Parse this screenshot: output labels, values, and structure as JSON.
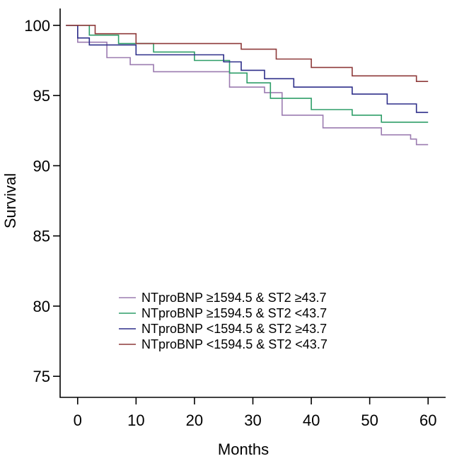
{
  "chart_data": {
    "type": "line",
    "subtype": "kaplan-meier-step",
    "xlabel": "Months",
    "ylabel": "Survival",
    "xlim": [
      -3,
      63
    ],
    "ylim": [
      73.5,
      101.2
    ],
    "xticks": [
      0,
      10,
      20,
      30,
      40,
      50,
      60
    ],
    "yticks": [
      75,
      80,
      85,
      90,
      95,
      100
    ],
    "grid": false,
    "legend_position": "center-bottom",
    "series": [
      {
        "name": "NTproBNP ≥1594.5 & ST2 ≥43.7",
        "color": "#9b7bb0",
        "x": [
          -2,
          0,
          5,
          9,
          13,
          26,
          32,
          35,
          42,
          52,
          57,
          58,
          60
        ],
        "y": [
          100,
          98.8,
          97.7,
          97.2,
          96.7,
          95.6,
          95.2,
          93.6,
          92.7,
          92.2,
          91.9,
          91.5,
          91.5
        ]
      },
      {
        "name": "NTproBNP ≥1594.5 & ST2 <43.7",
        "color": "#2e9e68",
        "x": [
          -2,
          2,
          7,
          13,
          20,
          26,
          29,
          33,
          40,
          47,
          52,
          60
        ],
        "y": [
          100,
          99.3,
          98.7,
          98.1,
          97.5,
          96.6,
          95.9,
          94.8,
          94.0,
          93.6,
          93.1,
          93.1
        ]
      },
      {
        "name": "NTproBNP <1594.5 & ST2 ≥43.7",
        "color": "#2e2f8a",
        "x": [
          -2,
          0,
          2,
          10,
          25,
          28,
          32,
          37,
          47,
          53,
          58,
          60
        ],
        "y": [
          100,
          99.1,
          98.6,
          97.9,
          97.4,
          96.8,
          96.2,
          95.6,
          95.1,
          94.4,
          93.8,
          93.8
        ]
      },
      {
        "name": "NTproBNP <1594.5 & ST2 <43.7",
        "color": "#8e3a3a",
        "x": [
          -2,
          3,
          10,
          28,
          34,
          40,
          47,
          58,
          60
        ],
        "y": [
          100,
          99.4,
          98.7,
          98.3,
          97.6,
          97.0,
          96.4,
          96.0,
          96.0
        ]
      }
    ]
  }
}
